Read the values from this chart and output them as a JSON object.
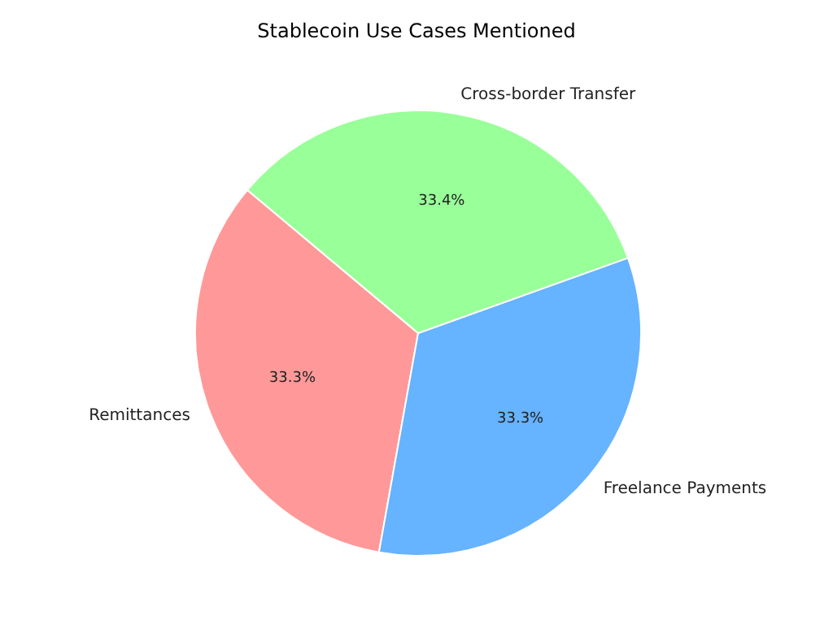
{
  "chart_data": {
    "type": "pie",
    "title": "Stablecoin Use Cases Mentioned",
    "categories": [
      "Remittances",
      "Freelance Payments",
      "Cross-border Transfer"
    ],
    "values": [
      33.3,
      33.3,
      33.4
    ],
    "colors": [
      "#ff9999",
      "#66b3ff",
      "#99ff99"
    ],
    "value_labels": [
      "33.3%",
      "33.3%",
      "33.4%"
    ]
  }
}
